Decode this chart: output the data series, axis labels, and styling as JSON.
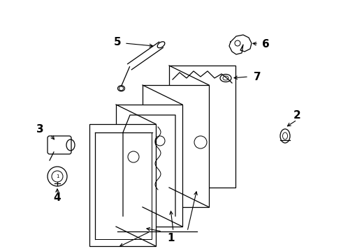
{
  "bg_color": "#ffffff",
  "line_color": "#000000",
  "figsize": [
    4.89,
    3.6
  ],
  "dpi": 100,
  "panel_color": "#ffffff",
  "label_fontsize": 10,
  "label_fontweight": "bold"
}
